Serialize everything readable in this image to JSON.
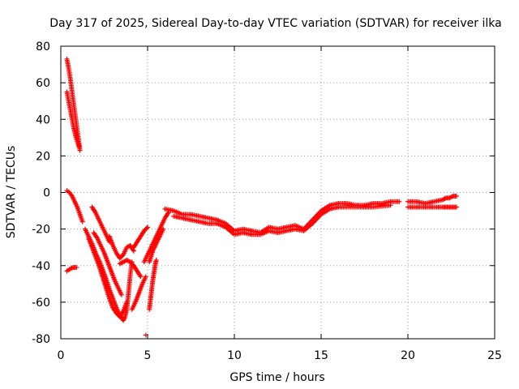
{
  "chart_data": {
    "type": "scatter",
    "title": "Day 317 of 2025, Sidereal Day-to-day VTEC variation (SDTVAR) for receiver ilka",
    "xlabel": "GPS time / hours",
    "ylabel": "SDTVAR / TECUs",
    "xlim": [
      0,
      25
    ],
    "ylim": [
      -80,
      80
    ],
    "xticks": [
      0,
      5,
      10,
      15,
      20,
      25
    ],
    "yticks": [
      -80,
      -60,
      -40,
      -20,
      0,
      20,
      40,
      60,
      80
    ],
    "xtick_labels": [
      "0",
      "5",
      "10",
      "15",
      "20",
      "25"
    ],
    "ytick_labels": [
      "-80",
      "-60",
      "-40",
      "-20",
      "0",
      "20",
      "40",
      "60",
      "80"
    ],
    "grid": true,
    "legend": "none",
    "marker": "+",
    "series_color": "#ff0000",
    "series": [
      {
        "name": "steep-a",
        "x": [
          0.35,
          0.45,
          0.55,
          0.65,
          0.75,
          0.85,
          0.95,
          1.05,
          1.1
        ],
        "y": [
          73,
          68,
          62,
          55,
          48,
          41,
          34,
          27,
          23
        ]
      },
      {
        "name": "steep-b",
        "x": [
          0.35,
          0.45,
          0.55,
          0.65,
          0.75,
          0.85,
          0.95,
          1.05
        ],
        "y": [
          55,
          50,
          45,
          40,
          35,
          31,
          28,
          25
        ]
      },
      {
        "name": "arc-a",
        "x": [
          0.35,
          0.5,
          0.65,
          0.8,
          0.95,
          1.1,
          1.25
        ],
        "y": [
          1,
          0,
          -2,
          -5,
          -8,
          -12,
          -16
        ]
      },
      {
        "name": "low-a",
        "x": [
          0.35,
          0.5,
          0.7,
          0.9
        ],
        "y": [
          -43,
          -42,
          -41,
          -41
        ]
      },
      {
        "name": "dip-a",
        "x": [
          1.4,
          1.6,
          1.8,
          2.0,
          2.2,
          2.4,
          2.6,
          2.8,
          3.0,
          3.2,
          3.4,
          3.6,
          3.7,
          3.8,
          3.9,
          4.0,
          4.1
        ],
        "y": [
          -20,
          -24,
          -28,
          -33,
          -37,
          -42,
          -47,
          -53,
          -58,
          -63,
          -67,
          -70,
          -68,
          -64,
          -55,
          -45,
          -38
        ]
      },
      {
        "name": "dip-b",
        "x": [
          1.6,
          1.8,
          2.0,
          2.2,
          2.4,
          2.6,
          2.8,
          3.0,
          3.2,
          3.4,
          3.6,
          3.8
        ],
        "y": [
          -25,
          -30,
          -35,
          -40,
          -46,
          -52,
          -58,
          -63,
          -66,
          -68,
          -65,
          -60
        ]
      },
      {
        "name": "dip-c",
        "x": [
          1.9,
          2.1,
          2.3,
          2.5,
          2.7,
          2.9,
          3.1,
          3.3,
          3.5
        ],
        "y": [
          -22,
          -25,
          -29,
          -33,
          -38,
          -43,
          -48,
          -52,
          -56
        ]
      },
      {
        "name": "arc-b",
        "x": [
          1.8,
          2.0,
          2.2,
          2.4,
          2.6,
          2.8
        ],
        "y": [
          -8,
          -11,
          -15,
          -19,
          -23,
          -27
        ]
      },
      {
        "name": "arc-c",
        "x": [
          2.8,
          3.0,
          3.2,
          3.4,
          3.6,
          3.8,
          4.0,
          4.2
        ],
        "y": [
          -24,
          -29,
          -33,
          -36,
          -34,
          -30,
          -29,
          -32
        ]
      },
      {
        "name": "arc-d",
        "x": [
          3.4,
          3.6,
          3.8,
          4.0,
          4.2,
          4.4,
          4.6
        ],
        "y": [
          -39,
          -38,
          -37,
          -38,
          -40,
          -43,
          -46
        ]
      },
      {
        "name": "arc-e",
        "x": [
          4.1,
          4.3,
          4.5,
          4.7,
          4.9
        ],
        "y": [
          -64,
          -60,
          -55,
          -50,
          -46
        ]
      },
      {
        "name": "rise-a",
        "x": [
          4.2,
          4.4,
          4.6,
          4.8,
          5.0
        ],
        "y": [
          -30,
          -27,
          -24,
          -21,
          -19
        ]
      },
      {
        "name": "rise-b",
        "x": [
          4.8,
          5.0,
          5.2,
          5.4,
          5.6,
          5.8,
          6.0,
          6.2
        ],
        "y": [
          -38,
          -34,
          -30,
          -26,
          -22,
          -18,
          -14,
          -11
        ]
      },
      {
        "name": "rise-c",
        "x": [
          5.1,
          5.3,
          5.5,
          5.7,
          5.9
        ],
        "y": [
          -38,
          -32,
          -28,
          -24,
          -20
        ]
      },
      {
        "name": "tail-a",
        "x": [
          5.1,
          5.15,
          5.2,
          5.25,
          5.3,
          5.35,
          5.4,
          5.45,
          5.5
        ],
        "y": [
          -64,
          -60,
          -56,
          -52,
          -48,
          -45,
          -42,
          -39,
          -37
        ]
      },
      {
        "name": "outlier",
        "x": [
          4.9
        ],
        "y": [
          -78
        ]
      },
      {
        "name": "main",
        "x": [
          6.0,
          6.5,
          7.0,
          7.5,
          8.0,
          8.5,
          9.0,
          9.5,
          10.0,
          10.5,
          11.0,
          11.5,
          12.0,
          12.5,
          13.0,
          13.5,
          14.0,
          14.5,
          15.0,
          15.5,
          16.0,
          16.5,
          17.0,
          17.5,
          18.0,
          18.5,
          19.0,
          19.5
        ],
        "y": [
          -9,
          -10,
          -12,
          -12,
          -13,
          -14,
          -15,
          -17,
          -21,
          -20,
          -21,
          -22,
          -19,
          -20,
          -19,
          -18,
          -20,
          -15,
          -10,
          -7,
          -6,
          -6,
          -7,
          -7,
          -6,
          -6,
          -5,
          -5
        ]
      },
      {
        "name": "main-lower",
        "x": [
          6.5,
          7.0,
          7.5,
          8.0,
          8.5,
          9.0,
          9.5,
          10.0,
          10.5,
          11.0,
          11.5,
          12.0,
          12.5,
          13.0,
          13.5,
          14.0,
          14.5,
          15.0,
          15.5,
          16.0,
          17.0,
          18.0,
          19.0
        ],
        "y": [
          -13,
          -14,
          -15,
          -16,
          -17,
          -17,
          -19,
          -23,
          -22,
          -23,
          -23,
          -21,
          -22,
          -21,
          -20,
          -21,
          -17,
          -12,
          -9,
          -8,
          -8,
          -8,
          -7
        ]
      },
      {
        "name": "end",
        "x": [
          20.0,
          20.5,
          21.0,
          21.5,
          22.0,
          22.2,
          22.4,
          22.6,
          22.8
        ],
        "y": [
          -5,
          -5,
          -6,
          -5,
          -4,
          -3,
          -3,
          -2,
          -2
        ]
      },
      {
        "name": "end-lower",
        "x": [
          20.0,
          20.5,
          21.0,
          21.5,
          22.0,
          22.2,
          22.4,
          22.6,
          22.8
        ],
        "y": [
          -8,
          -8,
          -8,
          -8,
          -8,
          -8,
          -8,
          -8,
          -8
        ]
      }
    ]
  }
}
